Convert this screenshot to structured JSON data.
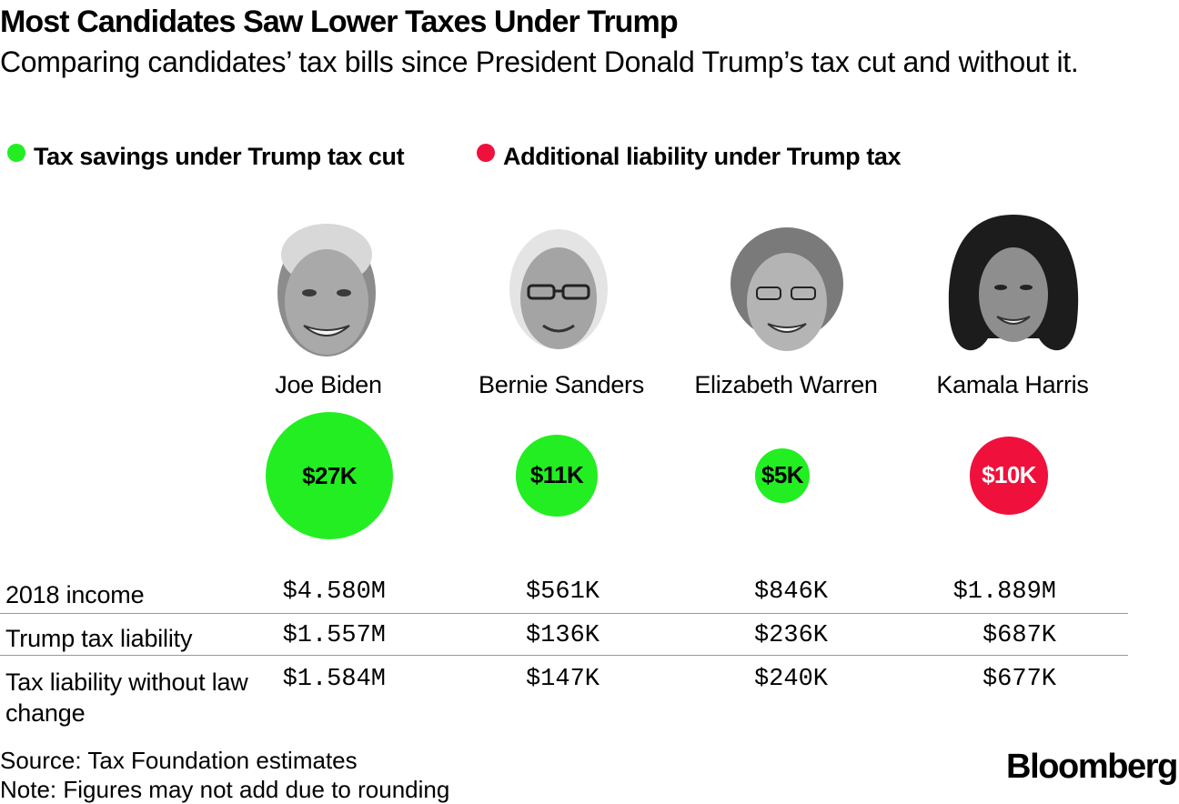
{
  "title": "Most Candidates Saw Lower Taxes Under Trump",
  "subtitle": "Comparing candidates’ tax bills since President Donald Trump’s tax cut and without it.",
  "legend": [
    {
      "label": "Tax savings under Trump tax cut",
      "color": "#22ee22"
    },
    {
      "label": "Additional liability under Trump tax",
      "color": "#f0103c"
    }
  ],
  "chart_data": {
    "type": "table",
    "candidates": [
      "Joe Biden",
      "Bernie Sanders",
      "Elizabeth Warren",
      "Kamala Harris"
    ],
    "difference_labels": [
      "$27K",
      "$11K",
      "$5K",
      "$10K"
    ],
    "difference_values": [
      27,
      11,
      5,
      10
    ],
    "difference_kind": [
      "savings",
      "savings",
      "savings",
      "liability"
    ],
    "rows": [
      {
        "label": "2018 income",
        "values": [
          "$4.580M",
          "$561K",
          "$846K",
          "$1.889M"
        ]
      },
      {
        "label": "Trump tax liability",
        "values": [
          "$1.557M",
          "$136K",
          "$236K",
          "$687K"
        ]
      },
      {
        "label": "Tax liability without law change",
        "values": [
          "$1.584M",
          "$147K",
          "$240K",
          "$677K"
        ]
      }
    ]
  },
  "footer": {
    "source": "Source: Tax Foundation estimates",
    "note": "Note: Figures may not add due to rounding",
    "brand": "Bloomberg"
  }
}
